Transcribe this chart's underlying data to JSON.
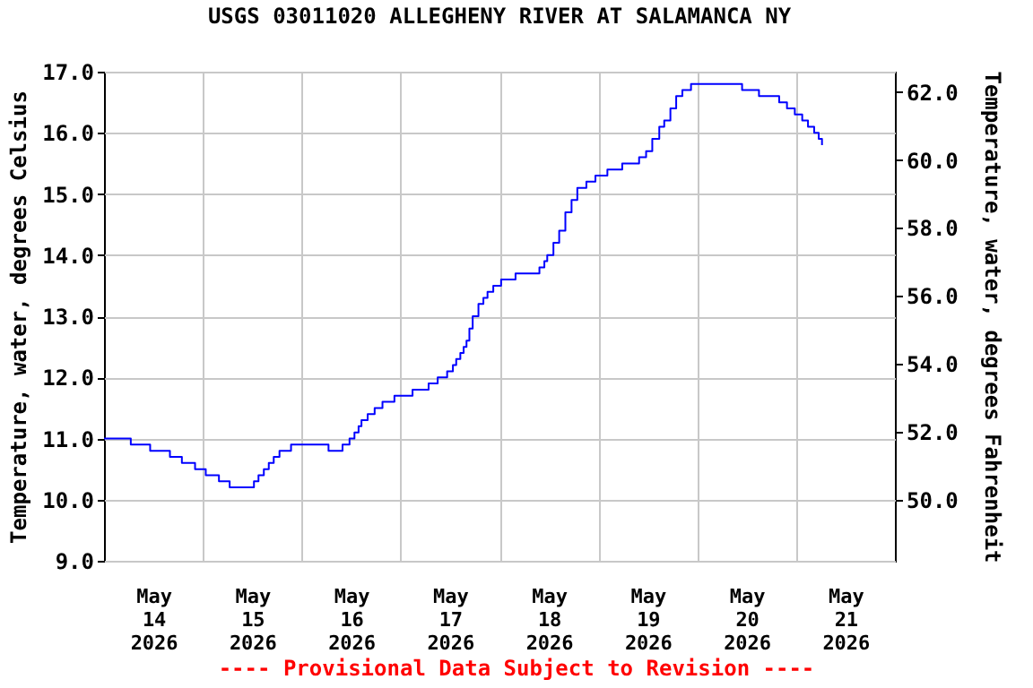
{
  "chart_data": {
    "type": "step",
    "title": "USGS 03011020 ALLEGHENY RIVER AT SALAMANCA NY",
    "ylabel": "Temperature, water, degrees Celsius",
    "y2label": "Temperature, water, degrees Fahrenheit",
    "annotations": [
      "---- Provisional Data Subject to Revision ----"
    ],
    "x": [
      "2026-05-14T00:00",
      "2026-05-14T06:30",
      "2026-05-14T11:12",
      "2026-05-14T16:00",
      "2026-05-14T18:54",
      "2026-05-14T22:06",
      "2026-05-15T00:42",
      "2026-05-15T03:54",
      "2026-05-15T06:30",
      "2026-05-15T12:24",
      "2026-05-15T13:30",
      "2026-05-15T14:48",
      "2026-05-15T16:00",
      "2026-05-15T17:12",
      "2026-05-15T18:36",
      "2026-05-15T21:24",
      "2026-05-16T06:30",
      "2026-05-16T09:54",
      "2026-05-16T11:36",
      "2026-05-16T12:48",
      "2026-05-16T13:48",
      "2026-05-16T14:30",
      "2026-05-16T16:00",
      "2026-05-16T17:42",
      "2026-05-16T19:36",
      "2026-05-16T22:30",
      "2026-05-17T02:54",
      "2026-05-17T06:48",
      "2026-05-17T09:00",
      "2026-05-17T11:18",
      "2026-05-17T12:42",
      "2026-05-17T13:30",
      "2026-05-17T14:30",
      "2026-05-17T15:18",
      "2026-05-17T16:00",
      "2026-05-17T16:42",
      "2026-05-17T17:30",
      "2026-05-17T18:54",
      "2026-05-17T20:06",
      "2026-05-17T21:06",
      "2026-05-17T22:30",
      "2026-05-18T00:24",
      "2026-05-18T03:54",
      "2026-05-18T09:42",
      "2026-05-18T10:54",
      "2026-05-18T11:36",
      "2026-05-18T13:06",
      "2026-05-18T14:30",
      "2026-05-18T16:00",
      "2026-05-18T17:30",
      "2026-05-18T18:54",
      "2026-05-18T21:06",
      "2026-05-18T23:18",
      "2026-05-19T02:12",
      "2026-05-19T05:48",
      "2026-05-19T09:54",
      "2026-05-19T11:36",
      "2026-05-19T13:06",
      "2026-05-19T14:48",
      "2026-05-19T16:00",
      "2026-05-19T17:30",
      "2026-05-19T18:54",
      "2026-05-19T20:24",
      "2026-05-19T22:30",
      "2026-05-20T10:54",
      "2026-05-20T15:00",
      "2026-05-20T19:54",
      "2026-05-20T21:48",
      "2026-05-20T23:42",
      "2026-05-21T01:30",
      "2026-05-21T02:54",
      "2026-05-21T04:24",
      "2026-05-21T05:30",
      "2026-05-21T06:18"
    ],
    "series": [
      {
        "color": "#0000ff",
        "values": [
          11.0,
          10.9,
          10.8,
          10.7,
          10.6,
          10.5,
          10.4,
          10.3,
          10.2,
          10.3,
          10.4,
          10.5,
          10.6,
          10.7,
          10.8,
          10.9,
          10.8,
          10.9,
          11.0,
          11.1,
          11.2,
          11.3,
          11.4,
          11.5,
          11.6,
          11.7,
          11.8,
          11.9,
          12.0,
          12.1,
          12.2,
          12.3,
          12.4,
          12.5,
          12.6,
          12.8,
          13.0,
          13.2,
          13.3,
          13.4,
          13.5,
          13.6,
          13.7,
          13.8,
          13.9,
          14.0,
          14.2,
          14.4,
          14.7,
          14.9,
          15.1,
          15.2,
          15.3,
          15.4,
          15.5,
          15.6,
          15.7,
          15.9,
          16.1,
          16.2,
          16.4,
          16.6,
          16.7,
          16.8,
          16.7,
          16.6,
          16.5,
          16.4,
          16.3,
          16.2,
          16.1,
          16.0,
          15.9,
          15.8
        ]
      }
    ],
    "xlim": [
      "2026-05-14T00:00",
      "2026-05-22T00:00"
    ],
    "xticks": [
      {
        "value": "2026-05-14T12:00",
        "label": "May 14 2026"
      },
      {
        "value": "2026-05-15T00:00",
        "label": null
      },
      {
        "value": "2026-05-15T12:00",
        "label": "May 15 2026"
      },
      {
        "value": "2026-05-16T00:00",
        "label": null
      },
      {
        "value": "2026-05-16T12:00",
        "label": "May 16 2026"
      },
      {
        "value": "2026-05-17T00:00",
        "label": null
      },
      {
        "value": "2026-05-17T12:00",
        "label": "May 17 2026"
      },
      {
        "value": "2026-05-18T00:00",
        "label": null
      },
      {
        "value": "2026-05-18T12:00",
        "label": "May 18 2026"
      },
      {
        "value": "2026-05-19T00:00",
        "label": null
      },
      {
        "value": "2026-05-19T12:00",
        "label": "May 19 2026"
      },
      {
        "value": "2026-05-20T00:00",
        "label": null
      },
      {
        "value": "2026-05-20T12:00",
        "label": "May 20 2026"
      },
      {
        "value": "2026-05-21T00:00",
        "label": null
      },
      {
        "value": "2026-05-21T12:00",
        "label": "May 21 2026"
      }
    ],
    "ylim": [
      9,
      17
    ],
    "yticks": [
      {
        "value": 9,
        "label": "9.0"
      },
      {
        "value": 10,
        "label": "10.0"
      },
      {
        "value": 11,
        "label": "11.0"
      },
      {
        "value": 12,
        "label": "12.0"
      },
      {
        "value": 13,
        "label": "13.0"
      },
      {
        "value": 14,
        "label": "14.0"
      },
      {
        "value": 15,
        "label": "15.0"
      },
      {
        "value": 16,
        "label": "16.0"
      },
      {
        "value": 17,
        "label": "17.0"
      }
    ],
    "y2lim": [
      48.2,
      62.6
    ],
    "y2ticks": [
      {
        "value": 50,
        "label": "50.0"
      },
      {
        "value": 52,
        "label": "52.0"
      },
      {
        "value": 54,
        "label": "54.0"
      },
      {
        "value": 56,
        "label": "56.0"
      },
      {
        "value": 58,
        "label": "58.0"
      },
      {
        "value": 60,
        "label": "60.0"
      },
      {
        "value": 62,
        "label": "62.0"
      }
    ],
    "grid": true,
    "marker": "none",
    "line_style": "solid"
  }
}
